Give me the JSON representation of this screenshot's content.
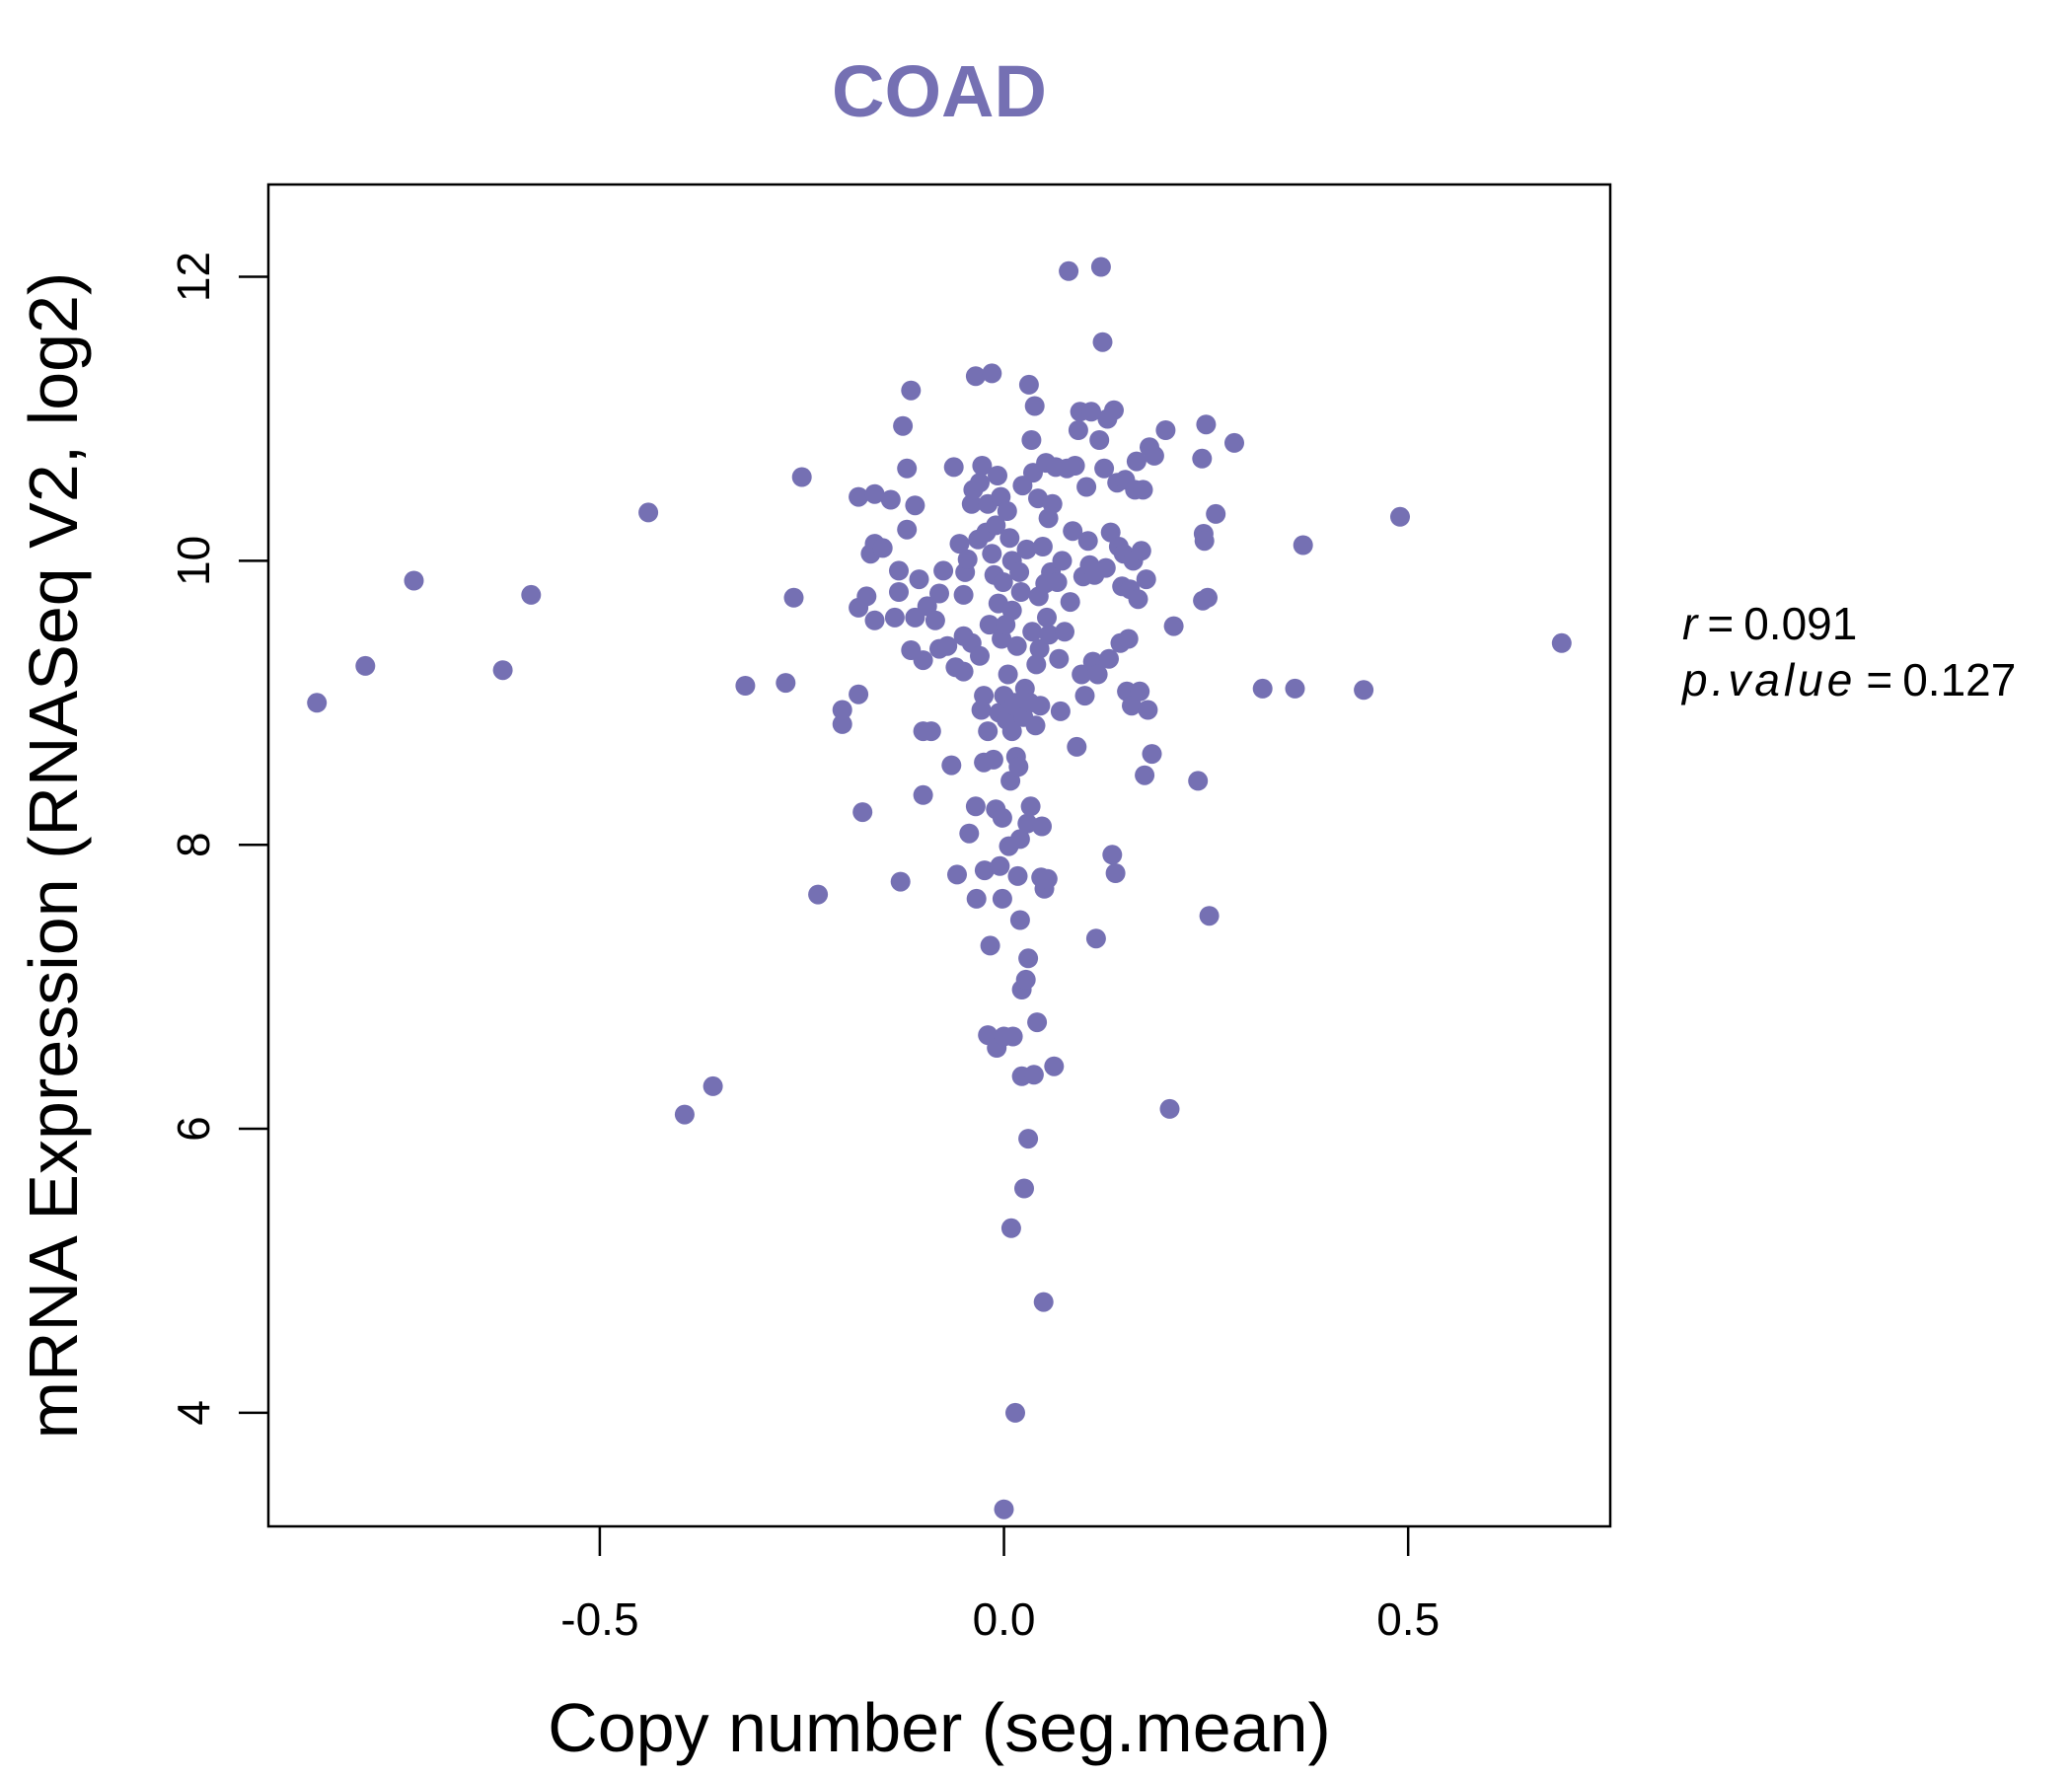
{
  "chart_data": {
    "type": "scatter",
    "title": "COAD",
    "xlabel": "Copy number (seg.mean)",
    "ylabel": "mRNA Expression (RNASeq V2, log2)",
    "xlim": [
      -0.91,
      0.75
    ],
    "ylim": [
      3.2,
      12.65
    ],
    "xticks": [
      -0.5,
      0.0,
      0.5
    ],
    "xtick_labels": [
      "-0.5",
      "0.0",
      "0.5"
    ],
    "yticks": [
      4,
      6,
      8,
      10,
      12
    ],
    "ytick_labels": [
      "4",
      "6",
      "8",
      "10",
      "12"
    ],
    "point_color": "#7570b3",
    "stats": {
      "r_label": "r",
      "r_value": "0.091",
      "p_label": "p.value",
      "p_value": "0.127",
      "equals": "="
    },
    "points": [
      [
        -0.85,
        9.0
      ],
      [
        -0.79,
        9.26
      ],
      [
        -0.73,
        9.86
      ],
      [
        -0.62,
        9.23
      ],
      [
        -0.585,
        9.76
      ],
      [
        -0.44,
        10.34
      ],
      [
        -0.395,
        6.1
      ],
      [
        -0.36,
        6.3
      ],
      [
        -0.32,
        9.12
      ],
      [
        -0.27,
        9.14
      ],
      [
        -0.26,
        9.74
      ],
      [
        -0.25,
        10.59
      ],
      [
        -0.23,
        7.65
      ],
      [
        -0.2,
        8.85
      ],
      [
        -0.2,
        8.95
      ],
      [
        -0.18,
        9.06
      ],
      [
        -0.18,
        10.45
      ],
      [
        -0.18,
        9.67
      ],
      [
        -0.175,
        8.23
      ],
      [
        -0.17,
        9.75
      ],
      [
        -0.165,
        10.05
      ],
      [
        -0.16,
        10.47
      ],
      [
        -0.16,
        10.12
      ],
      [
        -0.16,
        9.58
      ],
      [
        -0.15,
        10.09
      ],
      [
        -0.14,
        10.43
      ],
      [
        -0.135,
        9.6
      ],
      [
        -0.13,
        9.78
      ],
      [
        -0.13,
        9.93
      ],
      [
        -0.128,
        7.74
      ],
      [
        -0.125,
        10.95
      ],
      [
        -0.12,
        10.22
      ],
      [
        -0.12,
        10.65
      ],
      [
        -0.115,
        11.2
      ],
      [
        -0.115,
        9.37
      ],
      [
        -0.11,
        10.39
      ],
      [
        -0.11,
        9.6
      ],
      [
        -0.105,
        9.87
      ],
      [
        -0.1,
        8.35
      ],
      [
        -0.1,
        9.3
      ],
      [
        -0.1,
        8.8
      ],
      [
        -0.095,
        9.68
      ],
      [
        -0.09,
        8.8
      ],
      [
        -0.085,
        9.58
      ],
      [
        -0.08,
        9.77
      ],
      [
        -0.08,
        9.38
      ],
      [
        -0.075,
        9.93
      ],
      [
        -0.07,
        9.4
      ],
      [
        -0.065,
        8.56
      ],
      [
        -0.062,
        10.66
      ],
      [
        -0.06,
        9.25
      ],
      [
        -0.058,
        7.79
      ],
      [
        -0.055,
        10.12
      ],
      [
        -0.05,
        9.22
      ],
      [
        -0.05,
        9.47
      ],
      [
        -0.05,
        9.76
      ],
      [
        -0.048,
        9.92
      ],
      [
        -0.045,
        10.01
      ],
      [
        -0.043,
        8.08
      ],
      [
        -0.04,
        10.4
      ],
      [
        -0.04,
        9.42
      ],
      [
        -0.038,
        10.5
      ],
      [
        -0.035,
        11.3
      ],
      [
        -0.035,
        8.27
      ],
      [
        -0.034,
        7.62
      ],
      [
        -0.032,
        10.15
      ],
      [
        -0.03,
        9.33
      ],
      [
        -0.03,
        10.55
      ],
      [
        -0.028,
        8.95
      ],
      [
        -0.027,
        10.67
      ],
      [
        -0.025,
        9.05
      ],
      [
        -0.025,
        8.58
      ],
      [
        -0.024,
        7.82
      ],
      [
        -0.022,
        10.2
      ],
      [
        -0.02,
        10.4
      ],
      [
        -0.02,
        8.8
      ],
      [
        -0.02,
        6.66
      ],
      [
        -0.018,
        9.55
      ],
      [
        -0.017,
        7.29
      ],
      [
        -0.015,
        11.32
      ],
      [
        -0.015,
        10.05
      ],
      [
        -0.013,
        8.6
      ],
      [
        -0.012,
        9.9
      ],
      [
        -0.01,
        10.25
      ],
      [
        -0.01,
        8.25
      ],
      [
        -0.009,
        6.57
      ],
      [
        -0.008,
        10.6
      ],
      [
        -0.007,
        9.7
      ],
      [
        -0.006,
        8.93
      ],
      [
        -0.005,
        7.85
      ],
      [
        -0.004,
        10.45
      ],
      [
        -0.003,
        9.45
      ],
      [
        -0.002,
        8.19
      ],
      [
        -0.002,
        7.62
      ],
      [
        -0.001,
        9.85
      ],
      [
        0.0,
        3.32
      ],
      [
        0.0,
        6.65
      ],
      [
        0.0,
        9.05
      ],
      [
        0.002,
        9.55
      ],
      [
        0.003,
        8.88
      ],
      [
        0.004,
        10.35
      ],
      [
        0.005,
        9.2
      ],
      [
        0.006,
        7.99
      ],
      [
        0.007,
        10.16
      ],
      [
        0.008,
        8.45
      ],
      [
        0.009,
        5.3
      ],
      [
        0.01,
        8.8
      ],
      [
        0.01,
        9.65
      ],
      [
        0.01,
        10.0
      ],
      [
        0.011,
        6.65
      ],
      [
        0.012,
        8.98
      ],
      [
        0.013,
        9.0
      ],
      [
        0.014,
        4.0
      ],
      [
        0.015,
        8.62
      ],
      [
        0.016,
        9.4
      ],
      [
        0.017,
        7.78
      ],
      [
        0.018,
        8.55
      ],
      [
        0.019,
        9.92
      ],
      [
        0.02,
        8.04
      ],
      [
        0.02,
        7.47
      ],
      [
        0.021,
        9.78
      ],
      [
        0.022,
        6.37
      ],
      [
        0.022,
        6.98
      ],
      [
        0.023,
        10.53
      ],
      [
        0.024,
        8.9
      ],
      [
        0.025,
        5.58
      ],
      [
        0.026,
        9.1
      ],
      [
        0.027,
        7.05
      ],
      [
        0.028,
        10.08
      ],
      [
        0.029,
        8.15
      ],
      [
        0.03,
        5.93
      ],
      [
        0.03,
        7.2
      ],
      [
        0.031,
        11.24
      ],
      [
        0.032,
        9.0
      ],
      [
        0.033,
        8.27
      ],
      [
        0.034,
        10.85
      ],
      [
        0.035,
        9.5
      ],
      [
        0.036,
        10.62
      ],
      [
        0.037,
        6.38
      ],
      [
        0.038,
        11.09
      ],
      [
        0.039,
        8.84
      ],
      [
        0.04,
        9.27
      ],
      [
        0.041,
        6.75
      ],
      [
        0.042,
        10.44
      ],
      [
        0.043,
        9.75
      ],
      [
        0.044,
        9.38
      ],
      [
        0.045,
        8.98
      ],
      [
        0.046,
        7.77
      ],
      [
        0.047,
        8.13
      ],
      [
        0.048,
        10.1
      ],
      [
        0.049,
        4.78
      ],
      [
        0.05,
        7.69
      ],
      [
        0.051,
        9.84
      ],
      [
        0.052,
        10.69
      ],
      [
        0.053,
        9.6
      ],
      [
        0.054,
        7.76
      ],
      [
        0.055,
        10.3
      ],
      [
        0.056,
        9.48
      ],
      [
        0.058,
        9.92
      ],
      [
        0.06,
        10.4
      ],
      [
        0.062,
        6.44
      ],
      [
        0.064,
        10.66
      ],
      [
        0.066,
        9.85
      ],
      [
        0.068,
        9.31
      ],
      [
        0.07,
        8.94
      ],
      [
        0.072,
        10.0
      ],
      [
        0.075,
        9.5
      ],
      [
        0.078,
        10.65
      ],
      [
        0.08,
        12.04
      ],
      [
        0.082,
        9.71
      ],
      [
        0.085,
        10.21
      ],
      [
        0.088,
        10.67
      ],
      [
        0.09,
        8.69
      ],
      [
        0.092,
        10.92
      ],
      [
        0.094,
        11.05
      ],
      [
        0.096,
        9.2
      ],
      [
        0.098,
        9.89
      ],
      [
        0.1,
        9.05
      ],
      [
        0.102,
        10.52
      ],
      [
        0.104,
        10.14
      ],
      [
        0.106,
        9.97
      ],
      [
        0.108,
        11.05
      ],
      [
        0.11,
        9.29
      ],
      [
        0.112,
        9.9
      ],
      [
        0.114,
        7.34
      ],
      [
        0.116,
        9.2
      ],
      [
        0.118,
        10.85
      ],
      [
        0.12,
        12.07
      ],
      [
        0.122,
        11.54
      ],
      [
        0.124,
        10.65
      ],
      [
        0.126,
        9.95
      ],
      [
        0.128,
        11.0
      ],
      [
        0.13,
        9.31
      ],
      [
        0.132,
        10.2
      ],
      [
        0.134,
        7.93
      ],
      [
        0.136,
        11.06
      ],
      [
        0.138,
        7.8
      ],
      [
        0.14,
        10.55
      ],
      [
        0.142,
        10.1
      ],
      [
        0.144,
        9.42
      ],
      [
        0.146,
        9.82
      ],
      [
        0.148,
        10.05
      ],
      [
        0.15,
        10.57
      ],
      [
        0.152,
        9.08
      ],
      [
        0.154,
        9.45
      ],
      [
        0.156,
        9.8
      ],
      [
        0.158,
        8.98
      ],
      [
        0.16,
        10.0
      ],
      [
        0.162,
        10.5
      ],
      [
        0.164,
        10.7
      ],
      [
        0.166,
        9.73
      ],
      [
        0.168,
        9.08
      ],
      [
        0.17,
        10.07
      ],
      [
        0.172,
        10.5
      ],
      [
        0.174,
        8.49
      ],
      [
        0.176,
        9.87
      ],
      [
        0.178,
        8.95
      ],
      [
        0.18,
        10.8
      ],
      [
        0.183,
        8.64
      ],
      [
        0.186,
        10.74
      ],
      [
        0.2,
        10.92
      ],
      [
        0.205,
        6.14
      ],
      [
        0.21,
        9.54
      ],
      [
        0.24,
        8.45
      ],
      [
        0.245,
        10.72
      ],
      [
        0.246,
        9.72
      ],
      [
        0.247,
        10.19
      ],
      [
        0.248,
        10.14
      ],
      [
        0.25,
        10.96
      ],
      [
        0.252,
        9.74
      ],
      [
        0.254,
        7.5
      ],
      [
        0.262,
        10.33
      ],
      [
        0.285,
        10.83
      ],
      [
        0.32,
        9.1
      ],
      [
        0.36,
        9.1
      ],
      [
        0.37,
        10.11
      ],
      [
        0.445,
        9.09
      ],
      [
        0.49,
        10.31
      ],
      [
        0.69,
        9.42
      ]
    ]
  }
}
